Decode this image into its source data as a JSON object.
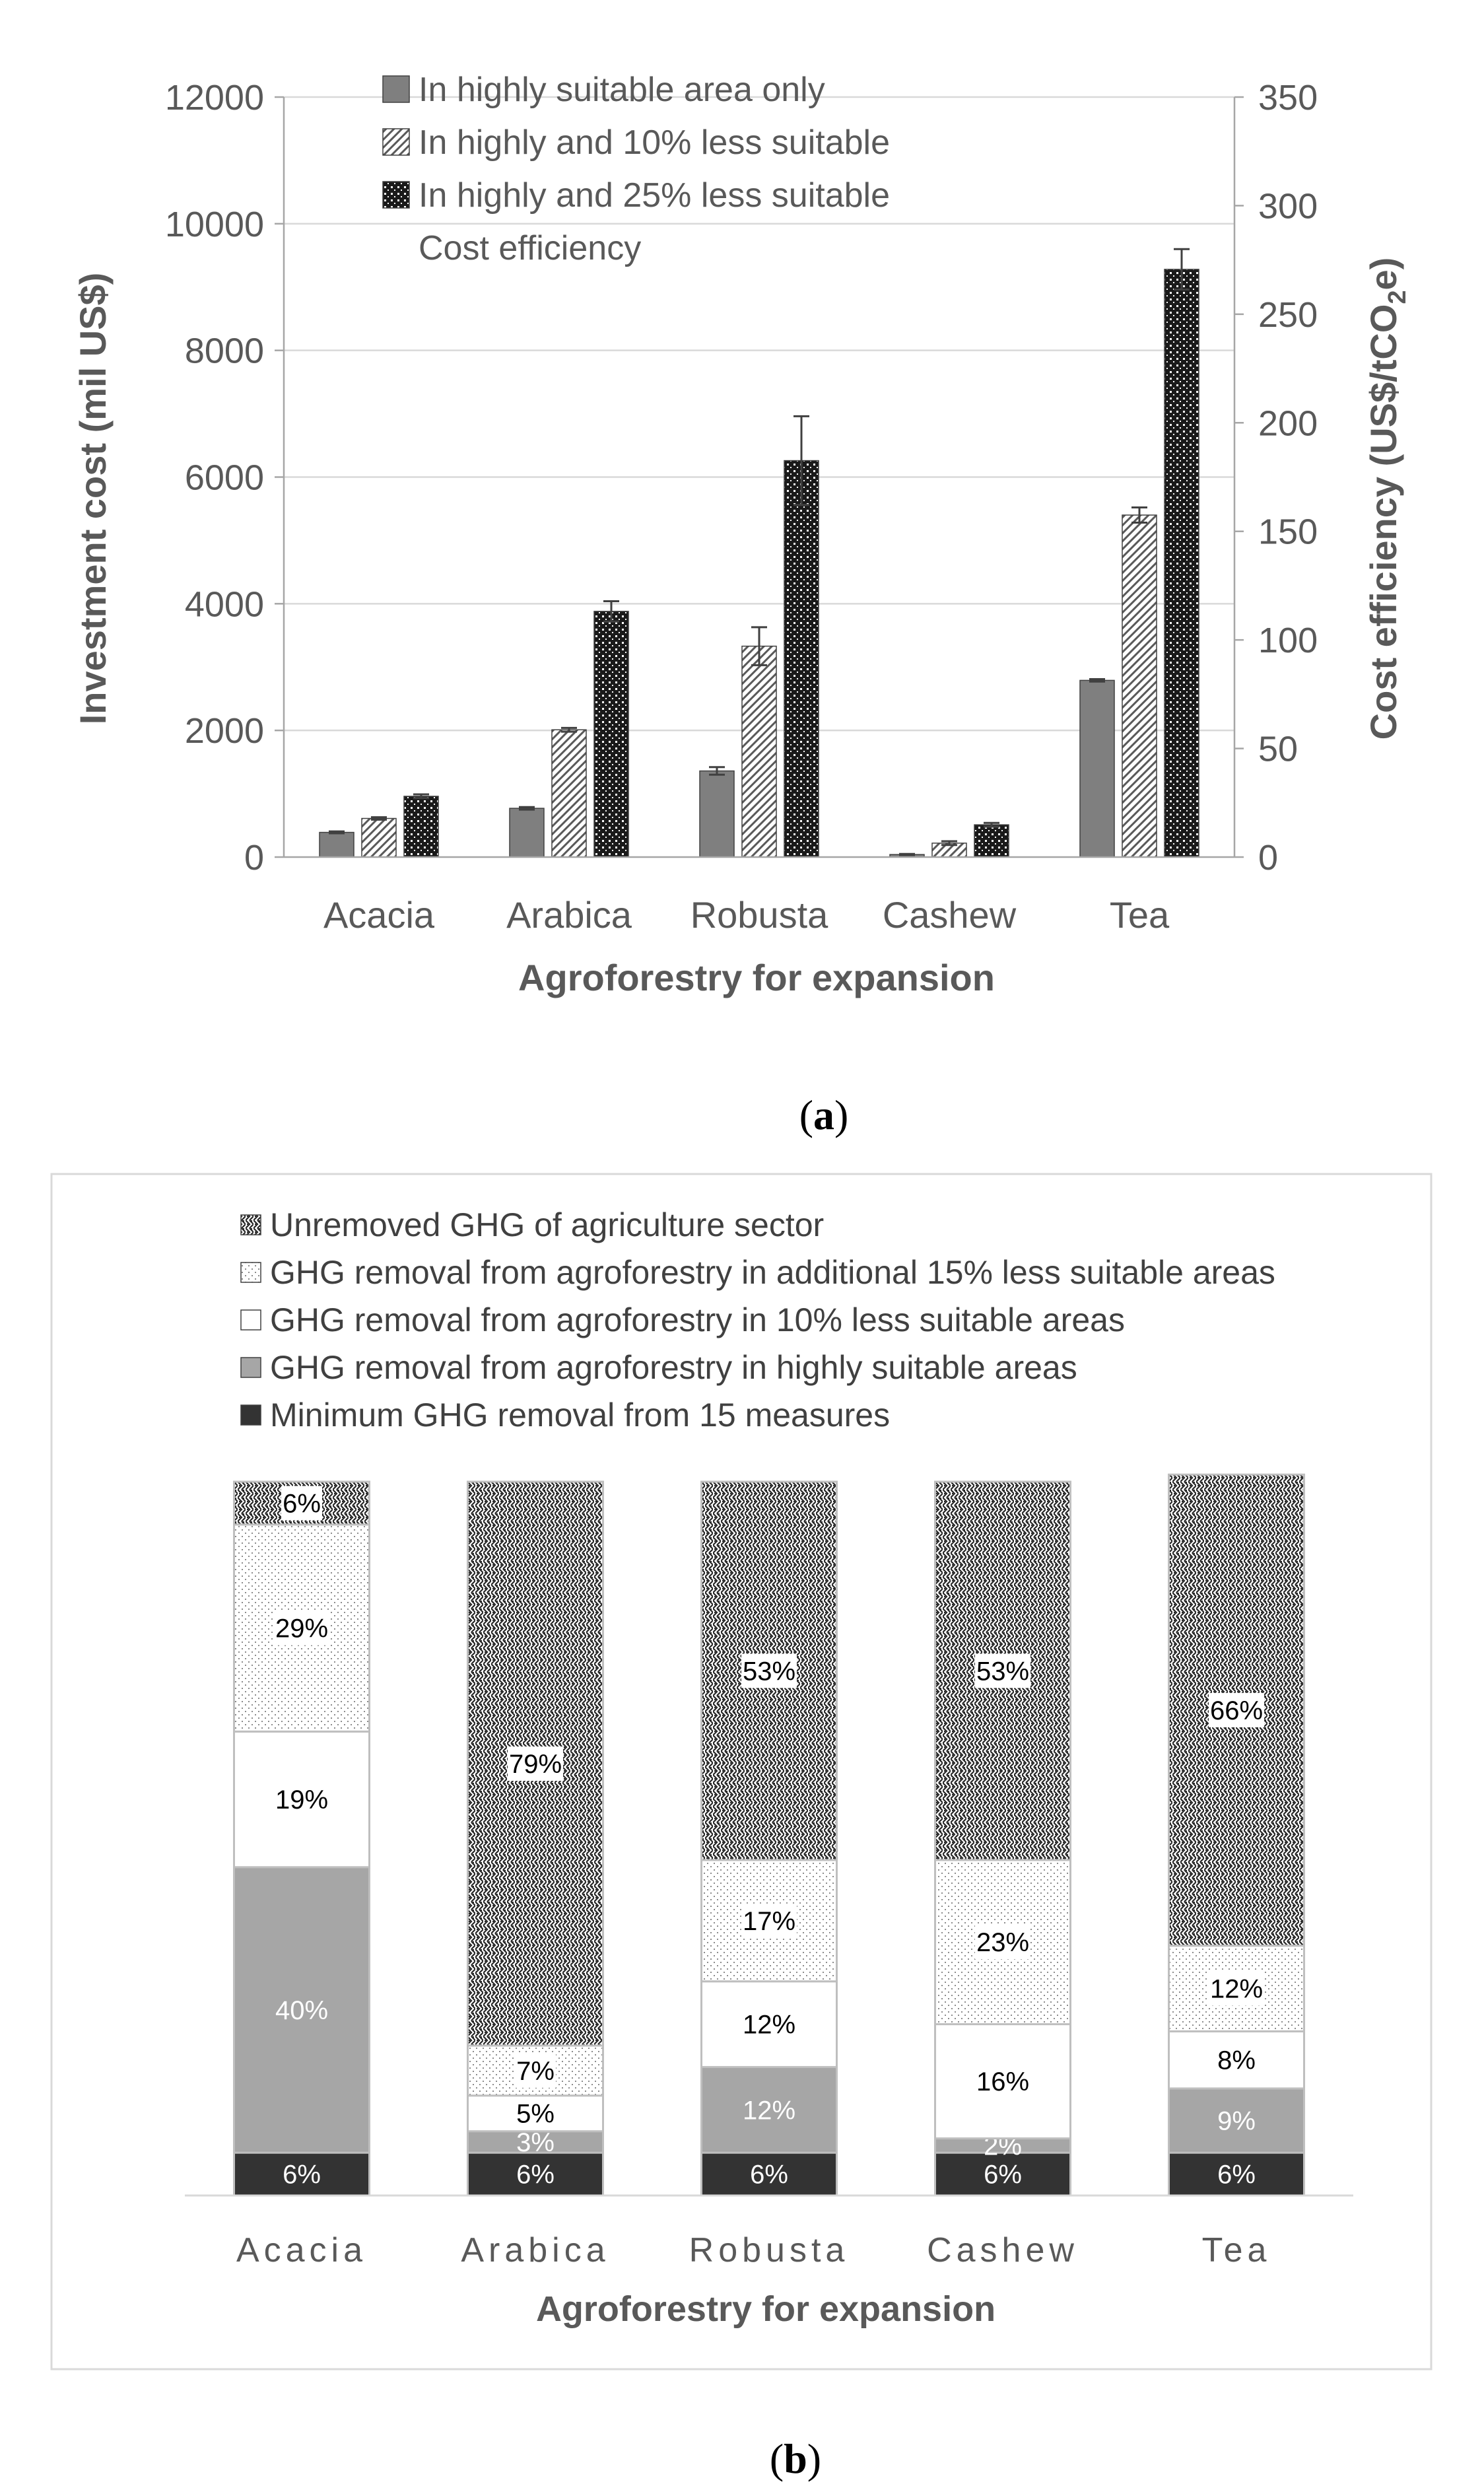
{
  "panel_a": {
    "caption_open": "(",
    "caption_letter": "a",
    "caption_close": ")"
  },
  "panel_b": {
    "caption_open": "(",
    "caption_letter": "b",
    "caption_close": ")"
  },
  "colors": {
    "solid_gray": "#7f7f7f",
    "light_gray": "#a6a6a6",
    "dark": "#333333",
    "axis_text": "#595959",
    "grid": "#d9d9d9"
  },
  "chart_data": [
    {
      "type": "bar",
      "panel": "a",
      "categories": [
        "Acacia",
        "Arabica",
        "Robusta",
        "Cashew",
        "Tea"
      ],
      "series": [
        {
          "name": "In highly suitable area only",
          "pattern": "solid",
          "values": [
            390,
            770,
            1360,
            40,
            2790
          ],
          "errors": [
            15,
            20,
            60,
            10,
            20
          ]
        },
        {
          "name": "In highly and 10% less suitable",
          "pattern": "hatch",
          "values": [
            610,
            2010,
            3330,
            220,
            5400
          ],
          "errors": [
            20,
            30,
            300,
            30,
            120
          ]
        },
        {
          "name": "In highly and 25% less suitable",
          "pattern": "cross",
          "values": [
            960,
            3880,
            6260,
            510,
            9280
          ],
          "errors": [
            30,
            160,
            700,
            30,
            320
          ]
        }
      ],
      "cost_efficiency_label": "Cost efficiency",
      "xlabel": "Agroforestry for expansion",
      "ylabel": "Investment cost (mil US$)",
      "ylabel2_parts": [
        "Cost efficiency (US$/tCO",
        "2",
        "e)"
      ],
      "ylim": [
        0,
        12000
      ],
      "yticks": [
        "0",
        "2000",
        "4000",
        "6000",
        "8000",
        "10000",
        "12000"
      ],
      "y2lim": [
        0,
        350
      ],
      "y2ticks": [
        "0",
        "50",
        "100",
        "150",
        "200",
        "250",
        "300",
        "350"
      ],
      "grid": true,
      "legend_position": "top-left"
    },
    {
      "type": "bar",
      "stacked": true,
      "percent": true,
      "panel": "b",
      "categories": [
        "Acacia",
        "Arabica",
        "Robusta",
        "Cashew",
        "Tea"
      ],
      "series": [
        {
          "name": "Minimum GHG removal from 15 measures",
          "pattern": "dark",
          "values": [
            6,
            6,
            6,
            6,
            6
          ],
          "labels": [
            "6%",
            "6%",
            "6%",
            "6%",
            "6%"
          ]
        },
        {
          "name": "GHG removal from agroforestry in highly suitable areas",
          "pattern": "gray",
          "values": [
            40,
            3,
            12,
            2,
            9
          ],
          "labels": [
            "40%",
            "3%",
            "12%",
            "2%",
            "9%"
          ]
        },
        {
          "name": "GHG removal from agroforestry in 10% less suitable areas",
          "pattern": "white",
          "values": [
            19,
            5,
            12,
            16,
            8
          ],
          "labels": [
            "19%",
            "5%",
            "12%",
            "16%",
            "8%"
          ]
        },
        {
          "name": "GHG removal from agroforestry in additional 15% less suitable areas",
          "pattern": "dots",
          "values": [
            29,
            7,
            17,
            23,
            12
          ],
          "labels": [
            "29%",
            "7%",
            "17%",
            "23%",
            "12%"
          ]
        },
        {
          "name": "Unremoved GHG of agriculture sector",
          "pattern": "weave",
          "values": [
            6,
            79,
            53,
            53,
            66
          ],
          "labels": [
            "6%",
            "79%",
            "53%",
            "53%",
            "66%"
          ]
        }
      ],
      "xlabel": "Agroforestry for expansion",
      "ylim": [
        0,
        100
      ],
      "legend_position": "top-left"
    }
  ]
}
